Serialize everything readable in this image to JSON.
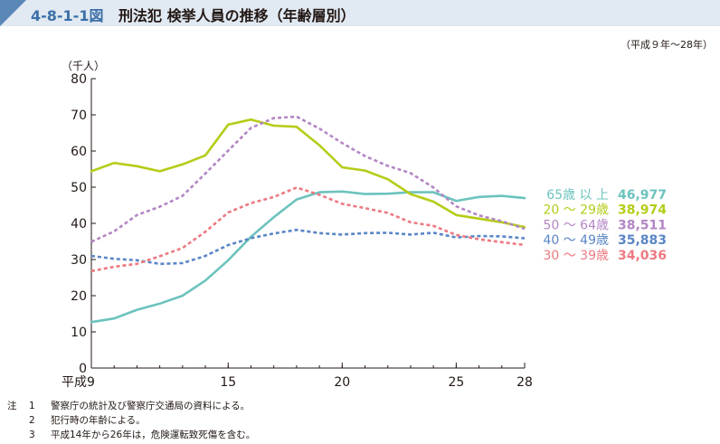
{
  "header": {
    "figure_number": "4-8-1-1図",
    "title": "刑法犯 検挙人員の推移（年齢層別）",
    "accent_color": "#5a86b8",
    "band_color": "#e1e9f2"
  },
  "period_note": "（平成９年～28年）",
  "chart_data": {
    "type": "line",
    "ylabel": "（千人）",
    "ylim": [
      0,
      80
    ],
    "yticks": [
      0,
      10,
      20,
      30,
      40,
      50,
      60,
      70,
      80
    ],
    "xlim": [
      9,
      28
    ],
    "x_tick_values": [
      9,
      15,
      20,
      25,
      28
    ],
    "x_tick_labels": [
      "平成9",
      "15",
      "20",
      "25",
      "28"
    ],
    "x": [
      9,
      10,
      11,
      12,
      13,
      14,
      15,
      16,
      17,
      18,
      19,
      20,
      21,
      22,
      23,
      24,
      25,
      26,
      27,
      28
    ],
    "grid": false,
    "legend_position": "right",
    "series": [
      {
        "name": "65歳 以 上",
        "latest_label": "46,977",
        "color": "#6cc3bd",
        "dashed": false,
        "values": [
          12.7,
          13.7,
          16.1,
          17.8,
          20.0,
          24.2,
          29.8,
          36.3,
          41.7,
          46.6,
          48.6,
          48.8,
          48.1,
          48.2,
          48.6,
          48.6,
          46.2,
          47.3,
          47.6,
          46.977
        ]
      },
      {
        "name": "20 ～ 29歳",
        "latest_label": "38,974",
        "color": "#b5cc18",
        "dashed": false,
        "values": [
          54.4,
          56.7,
          55.8,
          54.4,
          56.3,
          58.8,
          67.3,
          68.7,
          67.0,
          66.7,
          61.6,
          55.5,
          54.6,
          52.2,
          48.1,
          46.0,
          42.3,
          41.3,
          40.3,
          38.974
        ]
      },
      {
        "name": "50 ～ 64歳",
        "latest_label": "38,511",
        "color": "#b386c4",
        "dashed": true,
        "values": [
          34.9,
          37.8,
          42.3,
          44.6,
          47.6,
          53.8,
          60.1,
          66.4,
          69.1,
          69.5,
          66.2,
          62.2,
          58.6,
          55.9,
          53.9,
          49.9,
          44.7,
          42.2,
          40.6,
          38.511
        ]
      },
      {
        "name": "40 ～ 49歳",
        "latest_label": "35,883",
        "color": "#5a86c6",
        "dashed": true,
        "values": [
          31.0,
          30.2,
          29.8,
          28.8,
          29.0,
          31.0,
          34.0,
          35.9,
          37.2,
          38.2,
          37.3,
          36.9,
          37.3,
          37.4,
          36.9,
          37.4,
          36.1,
          36.5,
          36.4,
          35.883
        ]
      },
      {
        "name": "30 ～ 39歳",
        "latest_label": "34,036",
        "color": "#ec7a82",
        "dashed": true,
        "values": [
          26.8,
          28.0,
          28.8,
          30.9,
          33.2,
          37.7,
          43.0,
          45.6,
          47.3,
          49.9,
          47.9,
          45.4,
          44.2,
          42.9,
          40.3,
          39.3,
          36.8,
          35.6,
          34.8,
          34.036
        ]
      }
    ]
  },
  "notes": {
    "label": "注",
    "items": [
      {
        "num": "1",
        "text": "警察庁の統計及び警察庁交通局の資料による。"
      },
      {
        "num": "2",
        "text": "犯行時の年齢による。"
      },
      {
        "num": "3",
        "text": "平成14年から26年は，危険運転致死傷を含む。"
      }
    ]
  }
}
